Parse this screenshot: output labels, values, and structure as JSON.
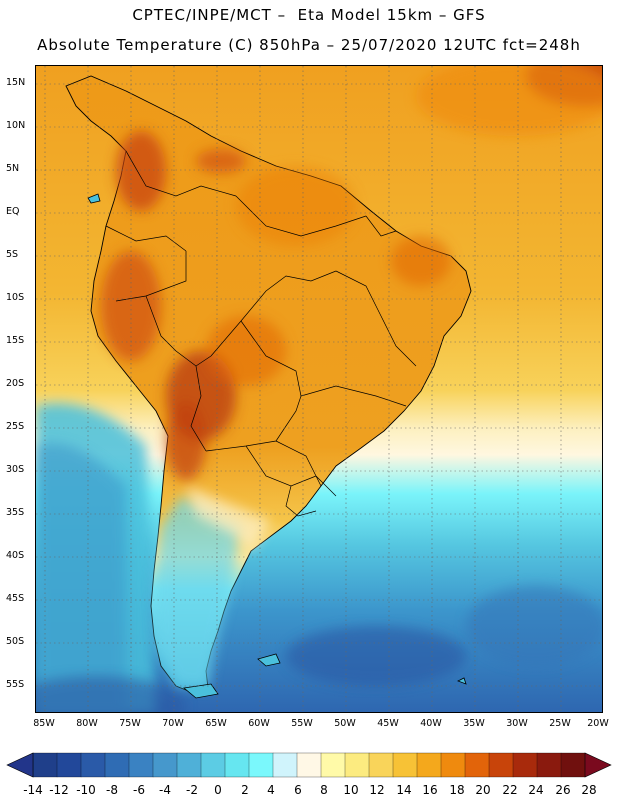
{
  "header": {
    "line1": "CPTEC/INPE/MCT –  Eta Model 15km – GFS",
    "line2": "Absolute Temperature (C) 850hPa – 25/07/2020 12UTC fct=248h"
  },
  "map": {
    "lat_labels": [
      "15N",
      "10N",
      "5N",
      "EQ",
      "5S",
      "10S",
      "15S",
      "20S",
      "25S",
      "30S",
      "35S",
      "40S",
      "45S",
      "50S",
      "55S"
    ],
    "lon_labels": [
      "85W",
      "80W",
      "75W",
      "70W",
      "65W",
      "60W",
      "55W",
      "50W",
      "45W",
      "40W",
      "35W",
      "30W",
      "25W",
      "20W"
    ],
    "region": "South America"
  },
  "colorbar": {
    "labels": [
      "-14",
      "-12",
      "-10",
      "-8",
      "-6",
      "-4",
      "-2",
      "0",
      "2",
      "4",
      "6",
      "8",
      "10",
      "12",
      "14",
      "16",
      "18",
      "20",
      "22",
      "24",
      "26",
      "28"
    ],
    "colors": [
      "#1f3f8a",
      "#22489a",
      "#2a5aa8",
      "#2f6cb4",
      "#3a82c2",
      "#4698cc",
      "#4fb0d8",
      "#5ccce4",
      "#66e6f0",
      "#7af8fc",
      "#d0f4fc",
      "#fff8e6",
      "#fffaa8",
      "#fceb80",
      "#f9d45a",
      "#f7c236",
      "#f4a81c",
      "#ef8a0e",
      "#e2640a",
      "#c8440a",
      "#a82a0c",
      "#8a1a0e",
      "#70100e"
    ],
    "under_color": "#22358a",
    "over_color": "#7a0a1e"
  },
  "fields": {
    "land_warm": "#f0a51c",
    "ocean_warm": "#f3b62e",
    "mountain_hot": "#c8440a"
  }
}
